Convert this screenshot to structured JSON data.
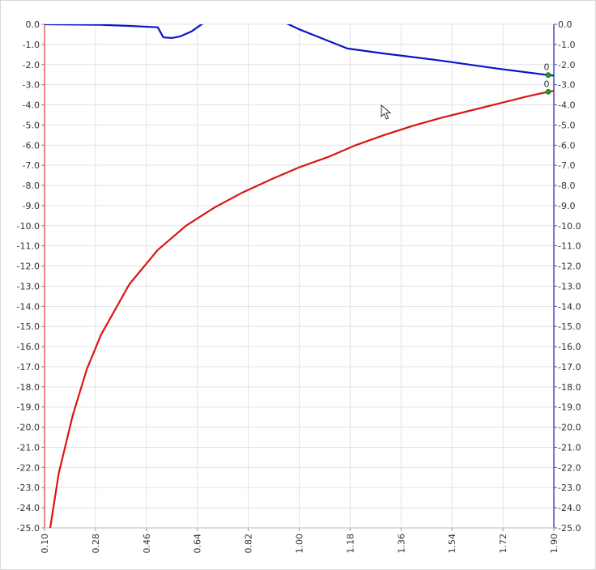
{
  "chart_data": {
    "type": "line",
    "x_ticks": [
      "0.10",
      "0.28",
      "0.46",
      "0.64",
      "0.82",
      "1.00",
      "1.18",
      "1.36",
      "1.54",
      "1.72",
      "1.90"
    ],
    "y_left_ticks": [
      "0.0",
      "-1.0",
      "-2.0",
      "-3.0",
      "-4.0",
      "-5.0",
      "-6.0",
      "-7.0",
      "-8.0",
      "-9.0",
      "-10.0",
      "-11.0",
      "-12.0",
      "-13.0",
      "-14.0",
      "-15.0",
      "-16.0",
      "-17.0",
      "-18.0",
      "-19.0",
      "-20.0",
      "-21.0",
      "-22.0",
      "-23.0",
      "-24.0",
      "-25.0"
    ],
    "y_right_ticks": [
      "0.0",
      "-1.0",
      "-2.0",
      "-3.0",
      "-4.0",
      "-5.0",
      "-6.0",
      "-7.0",
      "-8.0",
      "-9.0",
      "-10.0",
      "-11.0",
      "-12.0",
      "-13.0",
      "-14.0",
      "-15.0",
      "-16.0",
      "-17.0",
      "-18.0",
      "-19.0",
      "-20.0",
      "-21.0",
      "-22.0",
      "-23.0",
      "-24.0",
      "-25.0"
    ],
    "xlim": [
      0.1,
      1.9
    ],
    "ylim": [
      -25,
      0
    ],
    "grid": true,
    "series": [
      {
        "axis": "right",
        "color": "#0a14c8",
        "x": [
          0.1,
          0.3,
          0.4,
          0.5,
          0.52,
          0.55,
          0.58,
          0.62,
          0.66,
          0.7,
          0.8,
          0.93,
          0.97,
          1.0,
          1.08,
          1.17,
          1.3,
          1.5,
          1.7,
          1.88,
          1.9
        ],
        "y": [
          0.0,
          -0.03,
          -0.08,
          -0.15,
          -0.65,
          -0.68,
          -0.6,
          -0.35,
          0.05,
          0.45,
          0.9,
          0.2,
          -0.05,
          -0.25,
          -0.7,
          -1.2,
          -1.45,
          -1.8,
          -2.2,
          -2.52,
          -2.55
        ],
        "end_label": "0"
      },
      {
        "axis": "left",
        "color": "#dc1414",
        "x": [
          0.12,
          0.15,
          0.2,
          0.25,
          0.3,
          0.4,
          0.5,
          0.6,
          0.7,
          0.8,
          0.9,
          1.0,
          1.1,
          1.2,
          1.3,
          1.4,
          1.5,
          1.6,
          1.7,
          1.8,
          1.88,
          1.9
        ],
        "y": [
          -25.0,
          -22.3,
          -19.4,
          -17.1,
          -15.4,
          -12.9,
          -11.2,
          -10.0,
          -9.1,
          -8.35,
          -7.7,
          -7.1,
          -6.6,
          -6.0,
          -5.5,
          -5.05,
          -4.65,
          -4.3,
          -3.95,
          -3.6,
          -3.35,
          -3.3
        ],
        "end_label": "0"
      }
    ]
  },
  "colors": {
    "left_axis": "#e06060",
    "right_axis": "#5050b4",
    "grid": "#e3e3e3",
    "marker": "#1e9e28"
  },
  "icons": {
    "cursor": "arrow-cursor-icon"
  }
}
